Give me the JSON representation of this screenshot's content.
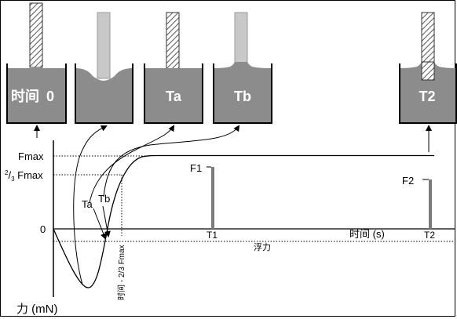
{
  "beakers": [
    {
      "label_cn": "时间",
      "label_num": "0"
    },
    {
      "label": ""
    },
    {
      "label": "Ta"
    },
    {
      "label": "Tb"
    },
    {
      "label": "T2"
    }
  ],
  "axis": {
    "y_label": "力 (mN)",
    "x_label": "时间 (s)",
    "zero": "0",
    "buoyancy": "浮力"
  },
  "levels": {
    "fmax": "Fmax",
    "two_thirds_prefix": "2",
    "two_thirds_sep": "/",
    "two_thirds_denom": "3",
    "two_thirds_suffix": " Fmax"
  },
  "markers": {
    "ta": "Ta",
    "tb": "Tb",
    "t1": "T1",
    "t2": "T2",
    "f1": "F1",
    "f2": "F2",
    "vertical_time_label": "时间 - 2/3 Fmax"
  },
  "colors": {
    "liquid": "#8c8c8c",
    "probe_hatch": "#555555",
    "probe_wet": "#c8c8c8",
    "bar": "#7a7a7a"
  }
}
